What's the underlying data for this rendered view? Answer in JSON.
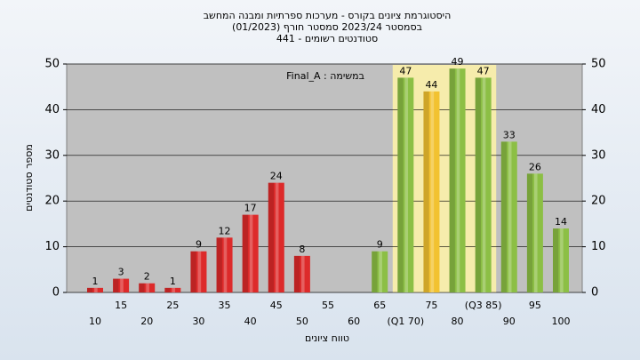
{
  "chart_data": {
    "type": "bar",
    "title": "היסטוגרמת ציונים בקורס - מערכות ספרתיות ומבנה המחשב",
    "subtitle": "בסמסטר 2023/24 סמסטר חורף (01/2023)",
    "subtitle2": "סטודנטים רשומים - 441",
    "annotation": "במשימה : Final_A",
    "y_label": "מספר סטודנטים",
    "x_label": "טווח ציונים",
    "categories": [
      "10",
      "15",
      "20",
      "25",
      "30",
      "35",
      "40",
      "45",
      "50",
      "55",
      "60",
      "65",
      "(Q1 70)",
      "75",
      "80",
      "(Q3 85)",
      "90",
      "95",
      "100"
    ],
    "values": [
      1,
      3,
      2,
      1,
      9,
      12,
      17,
      24,
      8,
      null,
      null,
      9,
      47,
      44,
      49,
      47,
      33,
      26,
      14
    ],
    "colors": [
      "#dd2a2a",
      "#dd2a2a",
      "#dd2a2a",
      "#dd2a2a",
      "#dd2a2a",
      "#dd2a2a",
      "#dd2a2a",
      "#dd2a2a",
      "#dd2a2a",
      "#dd2a2a",
      "#dd2a2a",
      "#8cbf45",
      "#8cbf45",
      "#f2c230",
      "#8cbf45",
      "#8cbf45",
      "#8cbf45",
      "#8cbf45",
      "#8cbf45"
    ],
    "ylim": [
      0,
      50
    ],
    "yticks": [
      0,
      10,
      20,
      30,
      40,
      50
    ],
    "grid": true
  }
}
